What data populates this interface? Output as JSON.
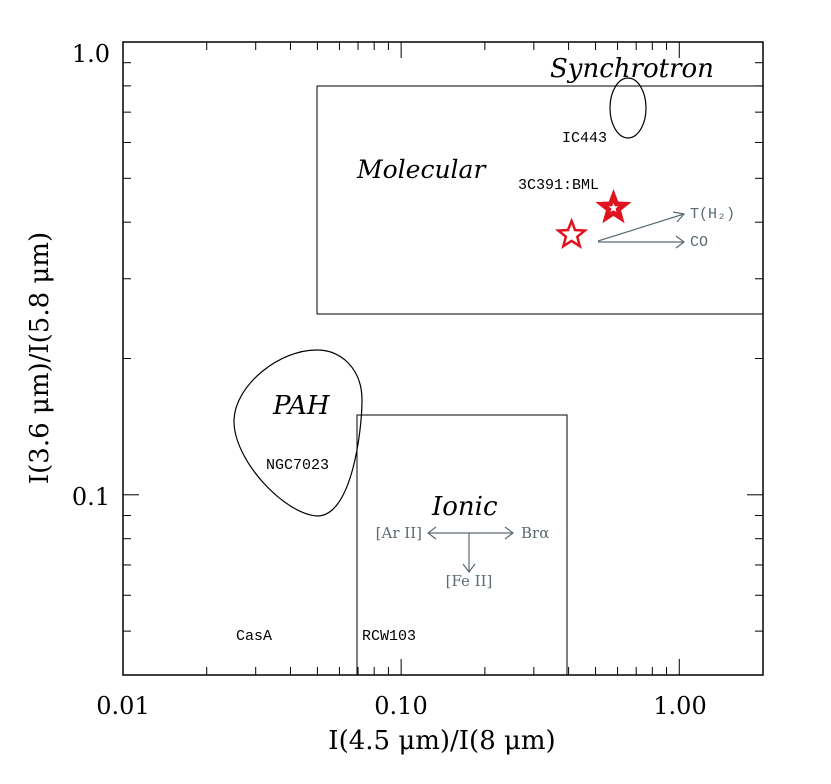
{
  "chart_data": {
    "type": "scatter",
    "x_scale": "log",
    "y_scale": "log",
    "xlim": [
      0.01,
      2.0
    ],
    "ylim": [
      0.04,
      1.0
    ],
    "xlabel": "I(4.5 μm)/I(8 μm)",
    "ylabel": "I(3.6 μm)/I(5.8 μm)",
    "x_ticks": [
      {
        "value": 0.01,
        "label": "0.01"
      },
      {
        "value": 0.1,
        "label": "0.10"
      },
      {
        "value": 1.0,
        "label": "1.00"
      }
    ],
    "y_ticks": [
      {
        "value": 0.1,
        "label": "0.1"
      },
      {
        "value": 1.0,
        "label": "1.0"
      }
    ],
    "regions": [
      {
        "name": "Molecular",
        "label": "Molecular",
        "x": [
          0.05,
          2.0
        ],
        "y": [
          0.25,
          0.9
        ]
      },
      {
        "name": "Ionic",
        "label": "Ionic",
        "x": [
          0.07,
          0.4
        ],
        "y": [
          0.04,
          0.15
        ]
      },
      {
        "name": "Synchrotron",
        "label": "Synchrotron",
        "x": [
          0.5,
          2.0
        ],
        "y": [
          0.9,
          1.0
        ]
      }
    ],
    "ellipses": [
      {
        "name": "PAH",
        "label": "PAH",
        "source": "NGC7023"
      },
      {
        "name": "IC443",
        "source": "IC443"
      }
    ],
    "points": [
      {
        "label": "3C391:BML",
        "x": 0.58,
        "y": 0.43,
        "style": "filled",
        "color": "#e0141e"
      },
      {
        "label": "",
        "x": 0.41,
        "y": 0.375,
        "style": "open",
        "color": "#e0141e"
      }
    ],
    "source_labels": [
      "IC443",
      "3C391:BML",
      "NGC7023",
      "CasA",
      "RCW103"
    ],
    "vectors": {
      "molecular": [
        {
          "label": "T(H₂)"
        },
        {
          "label": "CO"
        }
      ],
      "ionic": {
        "left": "[Ar II]",
        "right": "Brα",
        "down": "[Fe II]"
      }
    },
    "colors": {
      "axes": "#000000",
      "points": "#e0141e",
      "vectors": "#5b6b73",
      "ionic_top": "#7a1a1a"
    }
  }
}
